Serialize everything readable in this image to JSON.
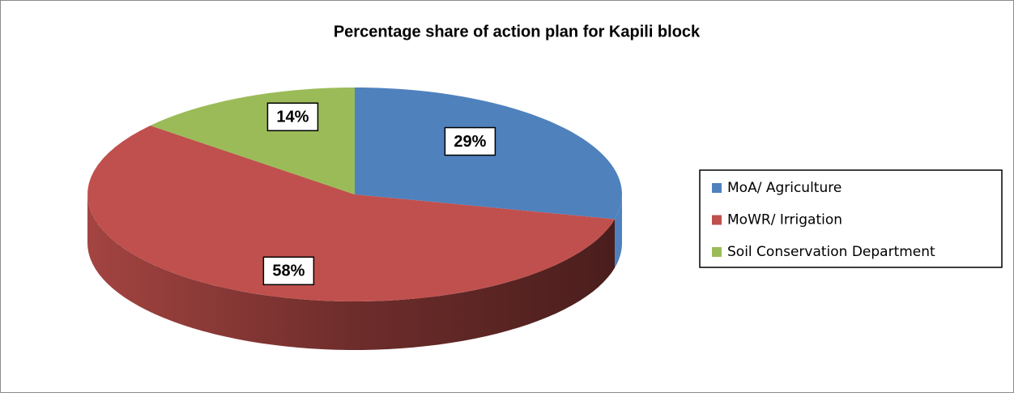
{
  "chart_data": {
    "type": "pie",
    "title": "Percentage share of action plan for Kapili block",
    "categories": [
      "MoA/ Agriculture",
      "MoWR/ Irrigation",
      "Soil Conservation Department"
    ],
    "values": [
      29,
      58,
      14
    ],
    "value_labels": [
      "29%",
      "58%",
      "14%"
    ],
    "colors": [
      "#4f81bd",
      "#c0504d",
      "#9bbb59"
    ],
    "legend": "right"
  }
}
